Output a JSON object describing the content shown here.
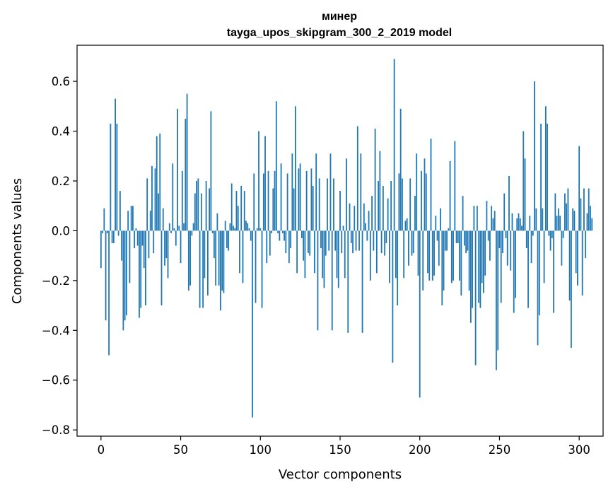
{
  "chart_data": {
    "type": "bar",
    "title": "минер",
    "subtitle": "tayga_upos_skipgram_300_2_2019 model",
    "xlabel": "Vector components",
    "ylabel": "Components values",
    "xlim": [
      -15,
      315
    ],
    "ylim": [
      -0.825,
      0.745
    ],
    "xticks": [
      0,
      50,
      100,
      150,
      200,
      250,
      300
    ],
    "xtick_labels": [
      "0",
      "50",
      "100",
      "150",
      "200",
      "250",
      "300"
    ],
    "yticks": [
      -0.8,
      -0.6,
      -0.4,
      -0.2,
      0.0,
      0.2,
      0.4,
      0.6
    ],
    "ytick_labels": [
      "−0.8",
      "−0.6",
      "−0.4",
      "−0.2",
      "0.0",
      "0.2",
      "0.4",
      "0.6"
    ],
    "bar_color": "#1f77b4",
    "values": [
      -0.15,
      -0.01,
      0.09,
      -0.36,
      -0.01,
      -0.5,
      0.43,
      -0.05,
      -0.05,
      0.53,
      0.43,
      -0.02,
      0.16,
      -0.12,
      -0.4,
      -0.36,
      -0.34,
      0.08,
      -0.21,
      0.1,
      0.1,
      -0.07,
      0.01,
      -0.06,
      -0.35,
      -0.31,
      -0.06,
      -0.15,
      -0.3,
      0.21,
      -0.11,
      0.08,
      0.26,
      -0.09,
      0.25,
      0.38,
      0.15,
      0.39,
      -0.3,
      0.09,
      -0.14,
      -0.11,
      -0.19,
      0.03,
      -0.01,
      0.27,
      0.01,
      -0.06,
      0.49,
      0.02,
      -0.13,
      0.24,
      0.03,
      0.45,
      0.55,
      -0.24,
      -0.22,
      -0.02,
      0.03,
      0.15,
      0.2,
      0.21,
      -0.31,
      0.15,
      -0.31,
      -0.19,
      0.2,
      -0.26,
      0.17,
      0.48,
      -0.01,
      -0.11,
      -0.22,
      0.07,
      -0.22,
      -0.32,
      -0.24,
      -0.25,
      0.04,
      -0.07,
      -0.08,
      0.03,
      0.19,
      0.02,
      0.01,
      0.16,
      0.1,
      -0.17,
      0.18,
      -0.21,
      0.16,
      0.04,
      0.03,
      0.01,
      -0.04,
      -0.75,
      0.23,
      -0.29,
      0.01,
      0.4,
      0.01,
      -0.31,
      0.23,
      0.38,
      -0.13,
      0.24,
      -0.1,
      -0.01,
      0.17,
      0.24,
      0.52,
      -0.01,
      -0.04,
      0.27,
      -0.01,
      -0.04,
      -0.09,
      0.23,
      -0.13,
      -0.07,
      0.31,
      0.17,
      0.5,
      -0.17,
      0.25,
      0.27,
      -0.03,
      -0.12,
      -0.19,
      0.24,
      -0.09,
      -0.1,
      0.25,
      0.18,
      -0.17,
      0.31,
      -0.4,
      0.21,
      -0.07,
      -0.19,
      -0.23,
      -0.1,
      0.21,
      -0.08,
      0.31,
      -0.4,
      0.21,
      -0.08,
      -0.19,
      -0.23,
      0.16,
      -0.09,
      0.02,
      -0.19,
      0.29,
      -0.41,
      0.11,
      -0.05,
      -0.09,
      0.1,
      -0.08,
      0.42,
      -0.08,
      0.31,
      -0.41,
      0.11,
      0.03,
      -0.04,
      0.08,
      -0.2,
      0.14,
      -0.08,
      0.41,
      -0.17,
      0.2,
      0.32,
      -0.09,
      0.18,
      -0.1,
      -0.05,
      0.13,
      -0.21,
      0.2,
      -0.53,
      0.69,
      -0.19,
      -0.3,
      0.23,
      0.49,
      0.21,
      -0.19,
      0.04,
      0.05,
      -0.14,
      0.21,
      -0.1,
      -0.09,
      0.14,
      0.31,
      -0.18,
      -0.67,
      0.24,
      -0.24,
      0.29,
      0.23,
      -0.17,
      -0.2,
      0.37,
      -0.2,
      -0.18,
      0.06,
      -0.04,
      -0.14,
      0.09,
      -0.3,
      -0.24,
      -0.08,
      -0.08,
      0.01,
      0.28,
      -0.21,
      -0.2,
      0.36,
      -0.05,
      -0.05,
      -0.2,
      -0.26,
      0.14,
      -0.06,
      -0.09,
      -0.08,
      -0.24,
      -0.37,
      -0.31,
      0.1,
      -0.54,
      0.1,
      -0.29,
      -0.31,
      -0.21,
      -0.25,
      -0.18,
      0.12,
      -0.04,
      -0.12,
      0.1,
      0.05,
      0.08,
      -0.56,
      -0.48,
      -0.07,
      -0.29,
      -0.09,
      0.15,
      -0.03,
      -0.14,
      0.22,
      -0.16,
      0.07,
      -0.33,
      -0.27,
      0.05,
      0.07,
      0.05,
      0.02,
      0.4,
      0.29,
      -0.07,
      -0.31,
      0.06,
      -0.13,
      -0.02,
      0.6,
      0.09,
      -0.46,
      -0.34,
      0.43,
      0.09,
      -0.21,
      0.5,
      0.43,
      -0.02,
      -0.08,
      -0.03,
      -0.33,
      0.15,
      0.06,
      0.09,
      0.06,
      -0.14,
      -0.03,
      0.15,
      0.11,
      0.17,
      -0.28,
      -0.47,
      0.09,
      0.08,
      -0.17,
      -0.22,
      0.34,
      0.13,
      -0.26,
      0.17,
      -0.11,
      0.07,
      0.17,
      0.1,
      0.05
    ]
  }
}
